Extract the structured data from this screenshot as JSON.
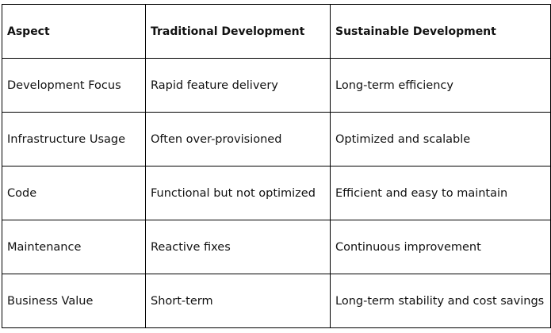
{
  "table": {
    "header": [
      "Aspect",
      "Traditional Development",
      "Sustainable Development"
    ],
    "rows": [
      [
        "Development Focus",
        "Rapid feature delivery",
        "Long-term efficiency"
      ],
      [
        "Infrastructure Usage",
        "Often over-provisioned",
        "Optimized and scalable"
      ],
      [
        "Code",
        "Functional but not optimized",
        "Efficient and easy to maintain"
      ],
      [
        "Maintenance",
        "Reactive fixes",
        "Continuous improvement"
      ],
      [
        "Business Value",
        "Short-term",
        "Long-term stability and cost savings"
      ]
    ]
  }
}
